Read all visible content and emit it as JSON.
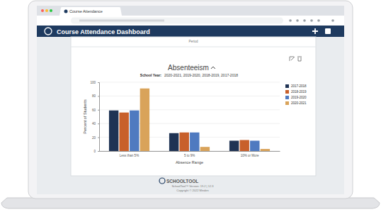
{
  "browser": {
    "tab_title": "Course Attendance"
  },
  "header": {
    "title": "Course Attendance Dashboard"
  },
  "card": {
    "top_label": "Period"
  },
  "chart_data": {
    "type": "bar",
    "title": "Absenteeism",
    "annotations": [
      "School Year:",
      "2020-2021, 2019-2020, 2018-2019, 2017-2018"
    ],
    "x_label": "Absence Range",
    "y_label": "Percent of Students",
    "categories": [
      "Less than 5%",
      "5 to 9%",
      "10% or More"
    ],
    "series": [
      {
        "name": "2017-2018",
        "color": "#1f3354",
        "values": [
          59,
          26,
          15
        ]
      },
      {
        "name": "2018-2019",
        "color": "#c8602b",
        "values": [
          56,
          27,
          16
        ]
      },
      {
        "name": "2019-2020",
        "color": "#4f7ac0",
        "values": [
          59,
          27,
          15
        ]
      },
      {
        "name": "2020-2021",
        "color": "#d9a35a",
        "values": [
          91,
          6,
          3
        ]
      }
    ],
    "ylim": [
      0,
      100
    ],
    "yticks": [
      0,
      20,
      40,
      60,
      80,
      100
    ],
    "grid": true,
    "legend": "right"
  },
  "footer": {
    "brand": "SCHOOLTOOL",
    "version": "SchoolTool™ Version: 19.2 | 12.3",
    "copyright": "Copyright © 2022 Minden"
  }
}
